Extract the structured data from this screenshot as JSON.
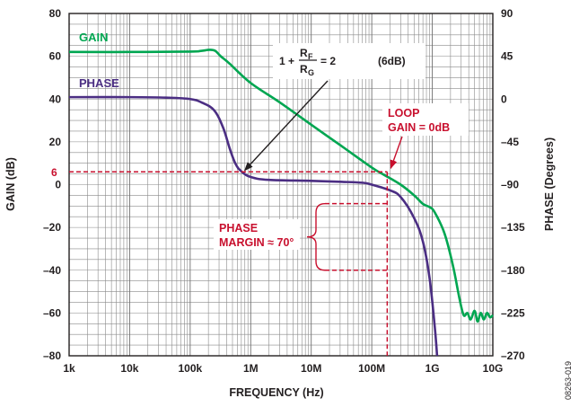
{
  "chart_data": {
    "type": "line",
    "x_axis": {
      "label": "FREQUENCY (Hz)",
      "scale": "log",
      "range": [
        1000,
        10000000000
      ],
      "ticks": [
        {
          "value": 1000,
          "label": "1k"
        },
        {
          "value": 10000,
          "label": "10k"
        },
        {
          "value": 100000,
          "label": "100k"
        },
        {
          "value": 1000000,
          "label": "1M"
        },
        {
          "value": 10000000,
          "label": "10M"
        },
        {
          "value": 100000000,
          "label": "100M"
        },
        {
          "value": 1000000000,
          "label": "1G"
        },
        {
          "value": 10000000000,
          "label": "10G"
        }
      ]
    },
    "y_left": {
      "label": "GAIN (dB)",
      "range": [
        -80,
        80
      ],
      "ticks": [
        {
          "value": 80,
          "label": "80"
        },
        {
          "value": 60,
          "label": "60"
        },
        {
          "value": 40,
          "label": "40"
        },
        {
          "value": 20,
          "label": "20"
        },
        {
          "value": 0,
          "label": "0"
        },
        {
          "value": -20,
          "label": "–20"
        },
        {
          "value": -40,
          "label": "–40"
        },
        {
          "value": -60,
          "label": "–60"
        },
        {
          "value": -80,
          "label": "–80"
        }
      ]
    },
    "y_right": {
      "label": "PHASE (Degrees)",
      "range": [
        -270,
        90
      ],
      "ticks": [
        {
          "value": 90,
          "label": "90"
        },
        {
          "value": 45,
          "label": "45"
        },
        {
          "value": 0,
          "label": "0"
        },
        {
          "value": -45,
          "label": "–45"
        },
        {
          "value": -90,
          "label": "–90"
        },
        {
          "value": -135,
          "label": "–135"
        },
        {
          "value": -180,
          "label": "–180"
        },
        {
          "value": -225,
          "label": "–225"
        },
        {
          "value": -270,
          "label": "–270"
        }
      ]
    },
    "grid": true,
    "series": [
      {
        "name": "GAIN",
        "axis": "left",
        "color": "#00a651",
        "points": [
          [
            1000,
            62
          ],
          [
            10000,
            62
          ],
          [
            100000,
            62.2
          ],
          [
            150000,
            62.5
          ],
          [
            210000,
            63
          ],
          [
            260000,
            62.5
          ],
          [
            320000,
            60
          ],
          [
            450000,
            56.5
          ],
          [
            1000000,
            47.5
          ],
          [
            3000000,
            38.5
          ],
          [
            10000000,
            28
          ],
          [
            30000000,
            18.5
          ],
          [
            100000000,
            8
          ],
          [
            150000000,
            5
          ],
          [
            300000000,
            0
          ],
          [
            500000000,
            -5
          ],
          [
            700000000,
            -9
          ],
          [
            900000000,
            -10.5
          ],
          [
            1100000000,
            -13
          ],
          [
            1600000000,
            -23
          ],
          [
            2200000000,
            -38
          ],
          [
            2800000000,
            -53
          ],
          [
            3300000000,
            -61
          ],
          [
            3800000000,
            -60
          ],
          [
            4300000000,
            -63
          ],
          [
            5000000000,
            -59
          ],
          [
            5600000000,
            -64
          ],
          [
            6300000000,
            -60
          ],
          [
            7100000000,
            -63
          ],
          [
            8000000000,
            -60
          ],
          [
            9000000000,
            -62
          ],
          [
            10000000000,
            -61
          ]
        ]
      },
      {
        "name": "PHASE",
        "axis": "right",
        "color": "#4b2e83",
        "points": [
          [
            1000,
            2
          ],
          [
            10000,
            2
          ],
          [
            40000,
            1.5
          ],
          [
            100000,
            0
          ],
          [
            160000,
            -4
          ],
          [
            250000,
            -12
          ],
          [
            350000,
            -30
          ],
          [
            450000,
            -52
          ],
          [
            560000,
            -68
          ],
          [
            700000,
            -76
          ],
          [
            1000000,
            -82
          ],
          [
            2000000,
            -85
          ],
          [
            10000000,
            -86
          ],
          [
            30000000,
            -87
          ],
          [
            70000000,
            -88
          ],
          [
            100000000,
            -90
          ],
          [
            200000000,
            -96
          ],
          [
            300000000,
            -103
          ],
          [
            500000000,
            -125
          ],
          [
            700000000,
            -150
          ],
          [
            900000000,
            -188
          ],
          [
            1100000000,
            -240
          ],
          [
            1200000000,
            -270
          ]
        ]
      }
    ],
    "annotations": {
      "gain_label": "GAIN",
      "phase_label": "PHASE",
      "equation": {
        "lead": "1 +",
        "num": "R",
        "num_sub": "F",
        "den": "R",
        "den_sub": "G",
        "tail": "= 2",
        "db": "(6dB)"
      },
      "loop_gain": [
        "LOOP",
        "GAIN = 0dB"
      ],
      "phase_margin": [
        "PHASE",
        "MARGIN ≈ 70°"
      ],
      "six_db_marker": {
        "value": 6,
        "label": "6"
      },
      "crossover_frequency": 180000000,
      "phase_at_crossover": -110
    }
  },
  "figure_id": "08263-019"
}
